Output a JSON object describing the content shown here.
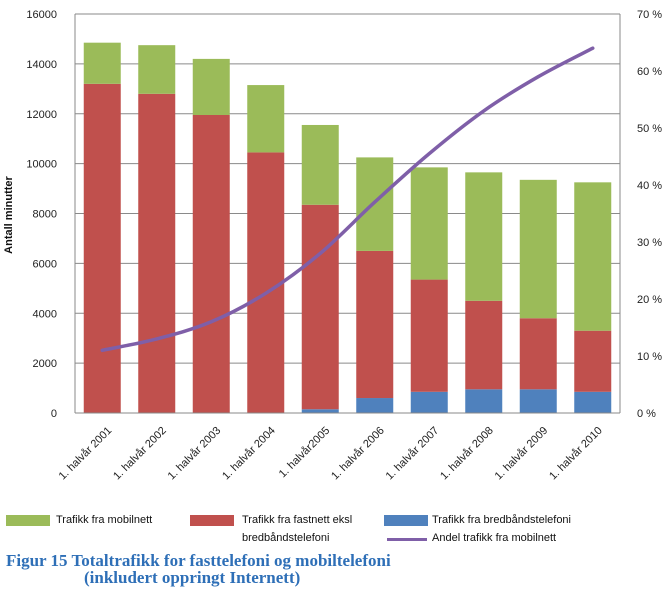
{
  "chart_data": {
    "type": "bar",
    "stacked": true,
    "categories": [
      "1. halvår 2001",
      "1. halvår 2002",
      "1. halvår 2003",
      "1. halvår 2004",
      "1. halvår2005",
      "1. halvår 2006",
      "1. halvår 2007",
      "1. halvår 2008",
      "1. halvår 2009",
      "1. halvår 2010"
    ],
    "ylabel": "Antall minutter",
    "ylim": [
      0,
      16000
    ],
    "yticks": [
      "0",
      "2000",
      "4000",
      "6000",
      "8000",
      "10000",
      "12000",
      "14000",
      "16000"
    ],
    "y2lim": [
      0,
      70
    ],
    "y2ticks": [
      "0 %",
      "10 %",
      "20 %",
      "30 %",
      "40 %",
      "50 %",
      "60 %",
      "70 %"
    ],
    "grid": true,
    "series": [
      {
        "name": "Trafikk fra bredbåndstelefoni",
        "color": "#4f81bd",
        "values": [
          0,
          0,
          0,
          0,
          150,
          600,
          850,
          950,
          950,
          850
        ]
      },
      {
        "name": "Trafikk fra fastnett eksl bredbåndstelefoni",
        "color": "#c0504d",
        "values": [
          13200,
          12800,
          11950,
          10450,
          8200,
          5900,
          4500,
          3550,
          2850,
          2450
        ]
      },
      {
        "name": "Trafikk fra mobilnett",
        "color": "#9bbb59",
        "values": [
          1650,
          1950,
          2250,
          2700,
          3200,
          3750,
          4500,
          5150,
          5550,
          5950
        ]
      }
    ],
    "line_series": {
      "name": "Andel trafikk fra mobilnett",
      "axis": "right",
      "color": "#7f5fa8",
      "values": [
        11,
        13,
        16,
        21,
        28,
        37,
        45.5,
        53,
        59,
        64
      ]
    },
    "legend_position": "bottom"
  },
  "legend": {
    "mobil": "Trafikk fra mobilnett",
    "fastnett_line1": "Trafikk fra fastnett eksl",
    "fastnett_line2": "bredbåndstelefoni",
    "bredband": "Trafikk fra bredbåndstelefoni",
    "andel": "Andel trafikk fra mobilnett"
  },
  "caption": {
    "line1": "Figur 15 Totaltrafikk for fasttelefoni og mobiltelefoni",
    "line2": "(inkludert oppringt Internett)"
  }
}
